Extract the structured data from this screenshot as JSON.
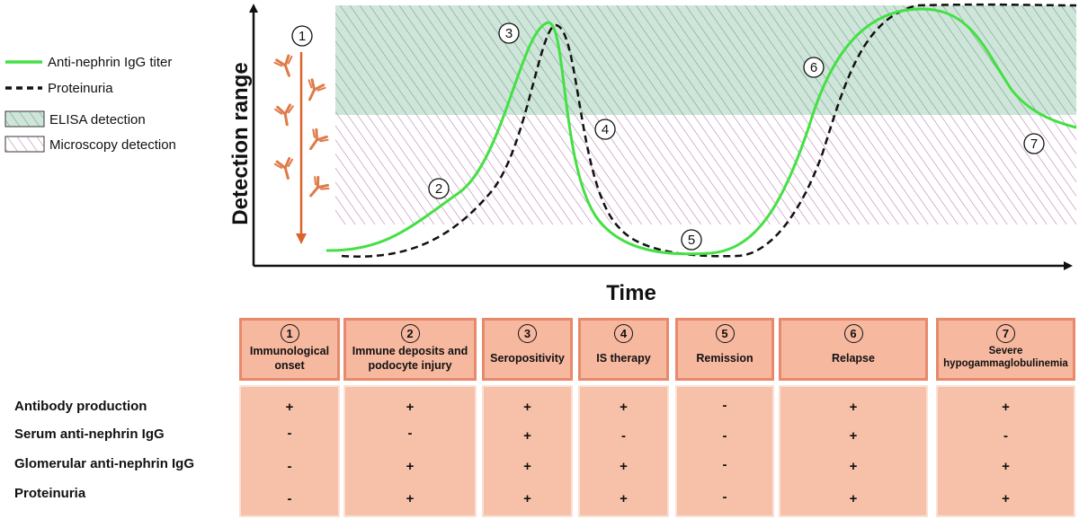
{
  "legend": {
    "igg_label": "Anti-nephrin IgG titer",
    "proteinuria_label": "Proteinuria",
    "elisa_label": "ELISA detection",
    "microscopy_label": "Microscopy detection"
  },
  "colors": {
    "igg_line": "#44e044",
    "proteinuria_line": "#111111",
    "elisa_fill": "#cfe5da",
    "elisa_hatch": "#5a9a7e",
    "microscopy_hatch": "#b06aa8",
    "antibody": "#e07a47",
    "arrow": "#d9652b",
    "stage_fill": "#f7b8a0",
    "stage_border": "#e8896b",
    "cell_fill": "#f7c0a8"
  },
  "axes": {
    "y_label": "Detection range",
    "x_label": "Time"
  },
  "diagram": {
    "markers": [
      "1",
      "2",
      "3",
      "4",
      "5",
      "6",
      "7"
    ]
  },
  "stages": [
    {
      "num": "1",
      "label": "Immunological onset"
    },
    {
      "num": "2",
      "label": "Immune deposits and podocyte injury"
    },
    {
      "num": "3",
      "label": "Seropositivity"
    },
    {
      "num": "4",
      "label": "IS therapy"
    },
    {
      "num": "5",
      "label": "Remission"
    },
    {
      "num": "6",
      "label": "Relapse"
    },
    {
      "num": "7",
      "label": "Severe hypogammaglobulinemia"
    }
  ],
  "table": {
    "rows": [
      {
        "label": "Antibody production",
        "values": [
          "+",
          "+",
          "+",
          "+",
          "-",
          "+",
          "+"
        ]
      },
      {
        "label": "Serum anti-nephrin IgG",
        "values": [
          "-",
          "-",
          "+",
          "-",
          "-",
          "+",
          "-"
        ]
      },
      {
        "label": "Glomerular anti-nephrin IgG",
        "values": [
          "-",
          "+",
          "+",
          "+",
          "-",
          "+",
          "+"
        ]
      },
      {
        "label": "Proteinuria",
        "values": [
          "-",
          "+",
          "+",
          "+",
          "-",
          "+",
          "+"
        ]
      }
    ]
  }
}
